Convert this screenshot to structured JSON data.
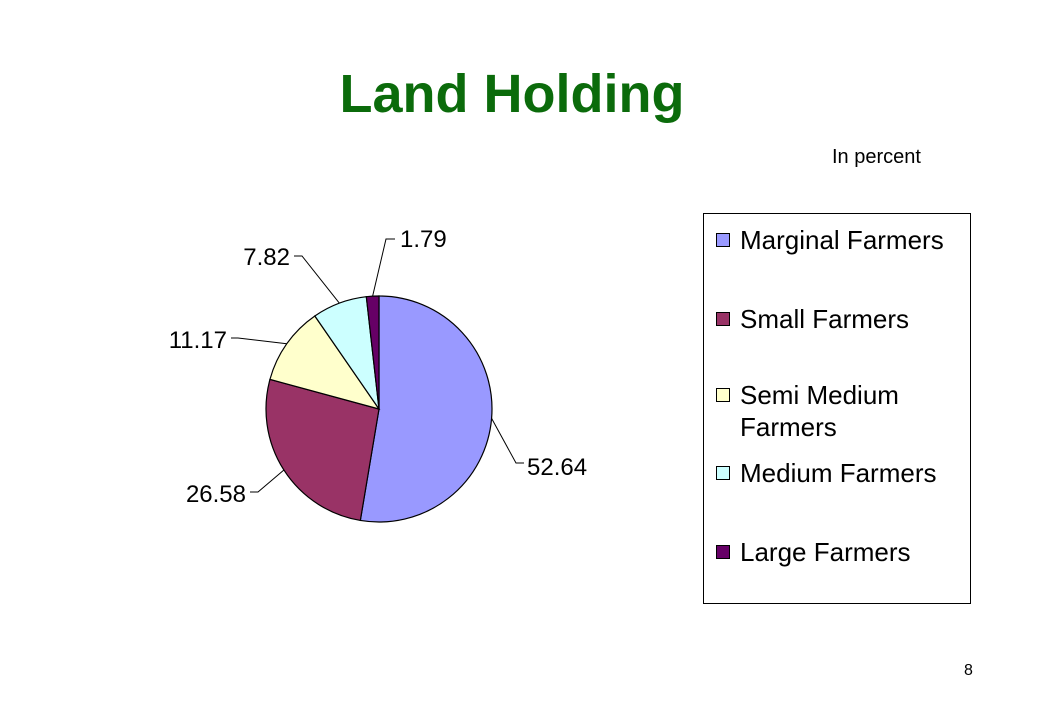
{
  "chart_data": {
    "type": "pie",
    "title": "Land Holding",
    "subtitle": "In percent",
    "categories": [
      "Marginal Farmers",
      "Small Farmers",
      "Semi Medium Farmers",
      "Medium Farmers",
      "Large Farmers"
    ],
    "values": [
      52.64,
      26.58,
      11.17,
      7.82,
      1.79
    ],
    "data_labels": [
      "52.64",
      "26.58",
      "11.17",
      "7.82",
      "1.79"
    ],
    "colors": [
      "#9999ff",
      "#993366",
      "#ffffcc",
      "#ccffff",
      "#660066"
    ],
    "legend_position": "right",
    "start_angle": "top-clockwise"
  },
  "legend": {
    "items": [
      {
        "label": "Marginal Farmers"
      },
      {
        "label": "Small Farmers"
      },
      {
        "label": "Semi Medium Farmers"
      },
      {
        "label": "Medium Farmers"
      },
      {
        "label": "Large Farmers"
      }
    ]
  },
  "page": {
    "number": "8"
  }
}
